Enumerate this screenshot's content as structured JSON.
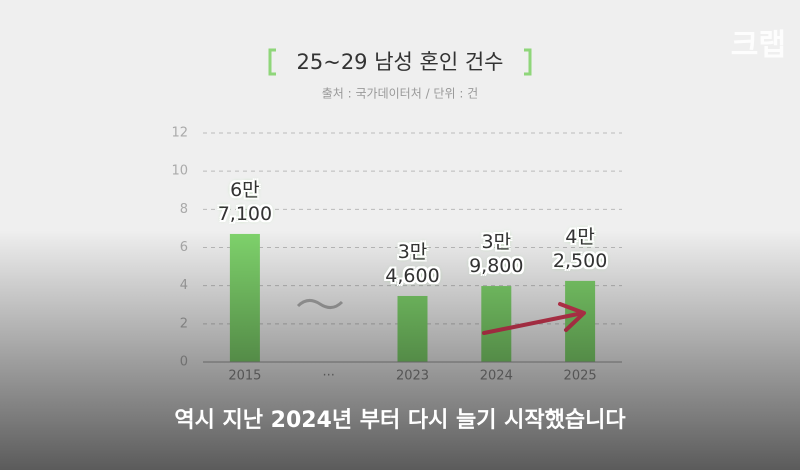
{
  "chart_data": {
    "type": "bar",
    "title": "25~29 남성 혼인 건수",
    "subtitle": "출처 : 국가데이터처 / 단위 : 건",
    "categories": [
      "2015",
      "···",
      "2023",
      "2024",
      "2025"
    ],
    "values": [
      6.71,
      null,
      3.46,
      3.98,
      4.25
    ],
    "value_labels": [
      "6만\n7,100",
      null,
      "3만\n4,600",
      "3만\n9,800",
      "4만\n2,500"
    ],
    "color": "#7fd36c",
    "ylim": [
      0,
      12
    ],
    "yticks": [
      0,
      2,
      4,
      6,
      8,
      10,
      12
    ],
    "grid": true
  },
  "caption": "역시 지난 2024년 부터 다시 늘기 시작했습니다",
  "watermark": "크랩"
}
